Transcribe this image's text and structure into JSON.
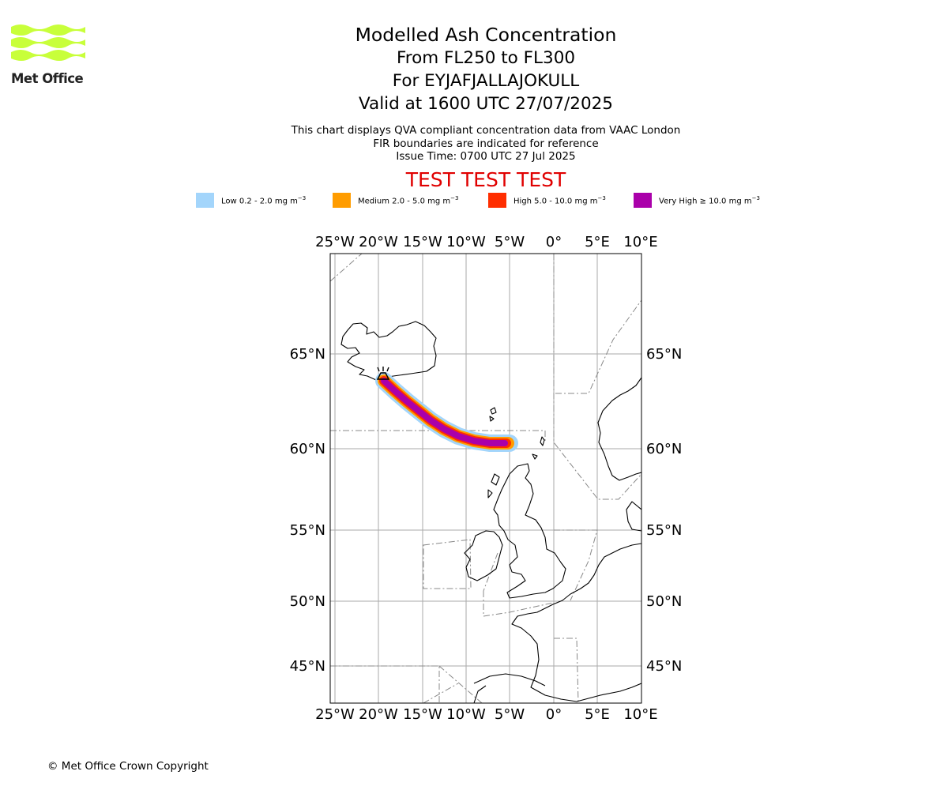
{
  "logo": {
    "name": "Met Office",
    "brand_color": "#c8ff3a"
  },
  "titles": {
    "title": "Modelled Ash Concentration",
    "levels": "From FL250 to FL300",
    "volcano": "For EYJAFJALLAJOKULL",
    "valid": "Valid at 1600 UTC 27/07/2025"
  },
  "subtitle": {
    "line1": "This chart displays QVA compliant concentration data from VAAC London",
    "line2": "FIR boundaries are indicated for reference",
    "line3": "Issue Time: 0700 UTC 27 Jul 2025"
  },
  "test_banner": "TEST TEST TEST",
  "legend": [
    {
      "label": "Low 0.2 - 2.0 mg m",
      "unit_exp": "−3",
      "color": "#a3d5fb"
    },
    {
      "label": "Medium 2.0 - 5.0 mg m",
      "unit_exp": "−3",
      "color": "#ff9c00"
    },
    {
      "label": "High 5.0 - 10.0 mg m",
      "unit_exp": "−3",
      "color": "#ff2e00"
    },
    {
      "label": "Very High  ≥  10.0 mg m",
      "unit_exp": "−3",
      "color": "#aa00aa"
    }
  ],
  "map": {
    "lon_ticks": [
      "25°W",
      "20°W",
      "15°W",
      "10°W",
      "5°W",
      "0°",
      "5°E",
      "10°E"
    ],
    "lat_ticks": [
      "65°N",
      "60°N",
      "55°N",
      "50°N",
      "45°N"
    ]
  },
  "copyright": "© Met Office Crown Copyright"
}
